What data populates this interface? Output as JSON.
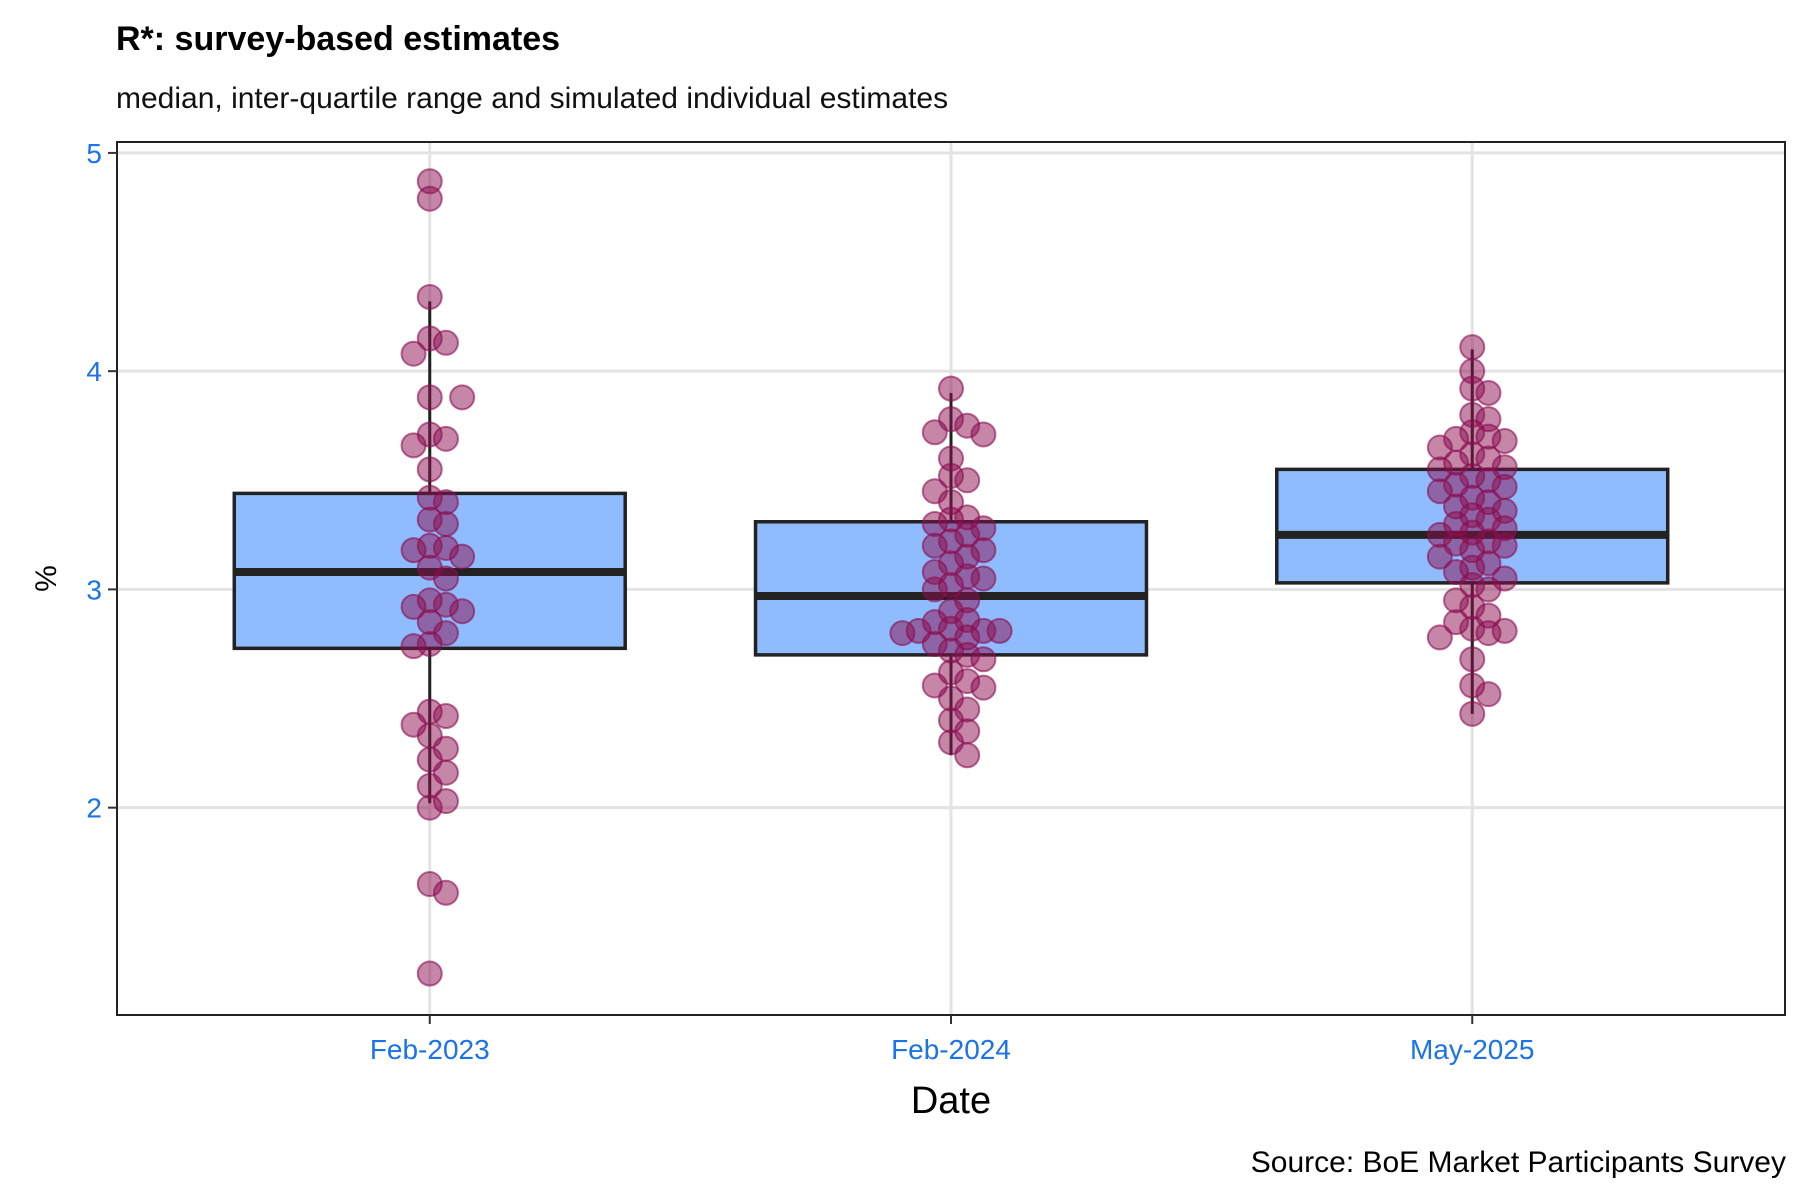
{
  "chart_data": {
    "type": "box",
    "title": "R*: survey-based estimates",
    "subtitle": "median, inter-quartile range and simulated individual estimates",
    "xlabel": "Date",
    "ylabel": "%",
    "caption": "Source: BoE Market Participants Survey",
    "categories": [
      "Feb-2023",
      "Feb-2024",
      "May-2025"
    ],
    "ylim": [
      1.05,
      5.05
    ],
    "yticks": [
      2,
      3,
      4,
      5
    ],
    "grid": true,
    "legend": "none",
    "colors": {
      "box_fill": "#8fbcff",
      "box_border": "#222222",
      "points": "#8b0d50",
      "tick_labels": "#1a73e8",
      "grid": "#e3e3e3"
    },
    "boxes": [
      {
        "category": "Feb-2023",
        "q1": 2.73,
        "median": 3.08,
        "q3": 3.44,
        "whisker_low": 2.02,
        "whisker_high": 4.32
      },
      {
        "category": "Feb-2024",
        "q1": 2.7,
        "median": 2.97,
        "q3": 3.31,
        "whisker_low": 2.24,
        "whisker_high": 3.9
      },
      {
        "category": "May-2025",
        "q1": 3.03,
        "median": 3.25,
        "q3": 3.55,
        "whisker_low": 2.43,
        "whisker_high": 4.1
      }
    ],
    "points": [
      {
        "category": "Feb-2023",
        "values": [
          4.87,
          4.79,
          4.34,
          4.15,
          4.13,
          4.08,
          3.88,
          3.88,
          3.71,
          3.69,
          3.66,
          3.55,
          3.42,
          3.4,
          3.32,
          3.3,
          3.2,
          3.19,
          3.18,
          3.15,
          3.1,
          3.05,
          2.95,
          2.93,
          2.92,
          2.9,
          2.85,
          2.8,
          2.75,
          2.74,
          2.44,
          2.42,
          2.38,
          2.33,
          2.27,
          2.22,
          2.16,
          2.1,
          2.03,
          2.0,
          1.65,
          1.61,
          1.24
        ]
      },
      {
        "category": "Feb-2024",
        "values": [
          3.92,
          3.78,
          3.75,
          3.72,
          3.71,
          3.6,
          3.52,
          3.5,
          3.45,
          3.4,
          3.33,
          3.32,
          3.3,
          3.28,
          3.25,
          3.22,
          3.2,
          3.18,
          3.15,
          3.12,
          3.08,
          3.06,
          3.05,
          3.02,
          3.0,
          2.95,
          2.9,
          2.86,
          2.85,
          2.82,
          2.81,
          2.81,
          2.81,
          2.8,
          2.78,
          2.75,
          2.72,
          2.7,
          2.68,
          2.62,
          2.58,
          2.56,
          2.55,
          2.5,
          2.45,
          2.4,
          2.35,
          2.3,
          2.24
        ]
      },
      {
        "category": "May-2025",
        "values": [
          4.11,
          4.0,
          3.92,
          3.9,
          3.8,
          3.78,
          3.72,
          3.7,
          3.69,
          3.68,
          3.65,
          3.62,
          3.6,
          3.58,
          3.56,
          3.55,
          3.52,
          3.5,
          3.48,
          3.47,
          3.45,
          3.42,
          3.4,
          3.38,
          3.36,
          3.34,
          3.32,
          3.3,
          3.28,
          3.26,
          3.25,
          3.22,
          3.21,
          3.2,
          3.18,
          3.15,
          3.12,
          3.1,
          3.08,
          3.05,
          3.02,
          3.0,
          2.95,
          2.92,
          2.88,
          2.85,
          2.82,
          2.81,
          2.8,
          2.78,
          2.68,
          2.56,
          2.52,
          2.43
        ]
      }
    ]
  }
}
